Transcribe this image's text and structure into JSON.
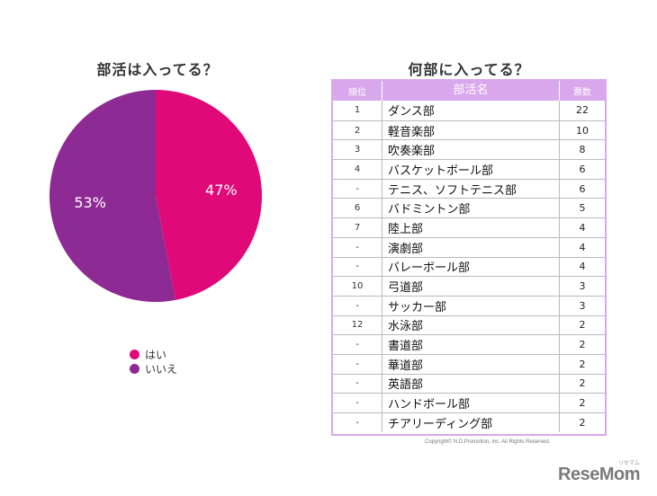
{
  "colors": {
    "accent": "#d9a8ec",
    "yes": "#e0097a",
    "no": "#8e2a93"
  },
  "chart_data": [
    {
      "type": "pie",
      "title": "部活は入ってる？",
      "slices": [
        {
          "label": "はい",
          "value": 47,
          "display": "47%",
          "color": "#e0097a"
        },
        {
          "label": "いいえ",
          "value": 53,
          "display": "53%",
          "color": "#8e2a93"
        }
      ],
      "legend_position": "bottom"
    },
    {
      "type": "table",
      "title": "何部に入ってる？",
      "columns": [
        "順位",
        "部活名",
        "票数"
      ],
      "rows": [
        {
          "rank": "1",
          "name": "ダンス部",
          "votes": "22"
        },
        {
          "rank": "2",
          "name": "軽音楽部",
          "votes": "10"
        },
        {
          "rank": "3",
          "name": "吹奏楽部",
          "votes": "8"
        },
        {
          "rank": "4",
          "name": "バスケットボール部",
          "votes": "6"
        },
        {
          "rank": "-",
          "name": "テニス、ソフトテニス部",
          "votes": "6"
        },
        {
          "rank": "6",
          "name": "バドミントン部",
          "votes": "5"
        },
        {
          "rank": "7",
          "name": "陸上部",
          "votes": "4"
        },
        {
          "rank": "-",
          "name": "演劇部",
          "votes": "4"
        },
        {
          "rank": "-",
          "name": "バレーボール部",
          "votes": "4"
        },
        {
          "rank": "10",
          "name": "弓道部",
          "votes": "3"
        },
        {
          "rank": "-",
          "name": "サッカー部",
          "votes": "3"
        },
        {
          "rank": "12",
          "name": "水泳部",
          "votes": "2"
        },
        {
          "rank": "-",
          "name": "書道部",
          "votes": "2"
        },
        {
          "rank": "-",
          "name": "華道部",
          "votes": "2"
        },
        {
          "rank": "-",
          "name": "英語部",
          "votes": "2"
        },
        {
          "rank": "-",
          "name": "ハンドボール部",
          "votes": "2"
        },
        {
          "rank": "-",
          "name": "チアリーディング部",
          "votes": "2"
        }
      ]
    }
  ],
  "copyright": "Copyright© N.D.Promotion, inc. All Rights Reserved.",
  "logo": {
    "text": "ReseMom",
    "ruby": "リセマム"
  }
}
